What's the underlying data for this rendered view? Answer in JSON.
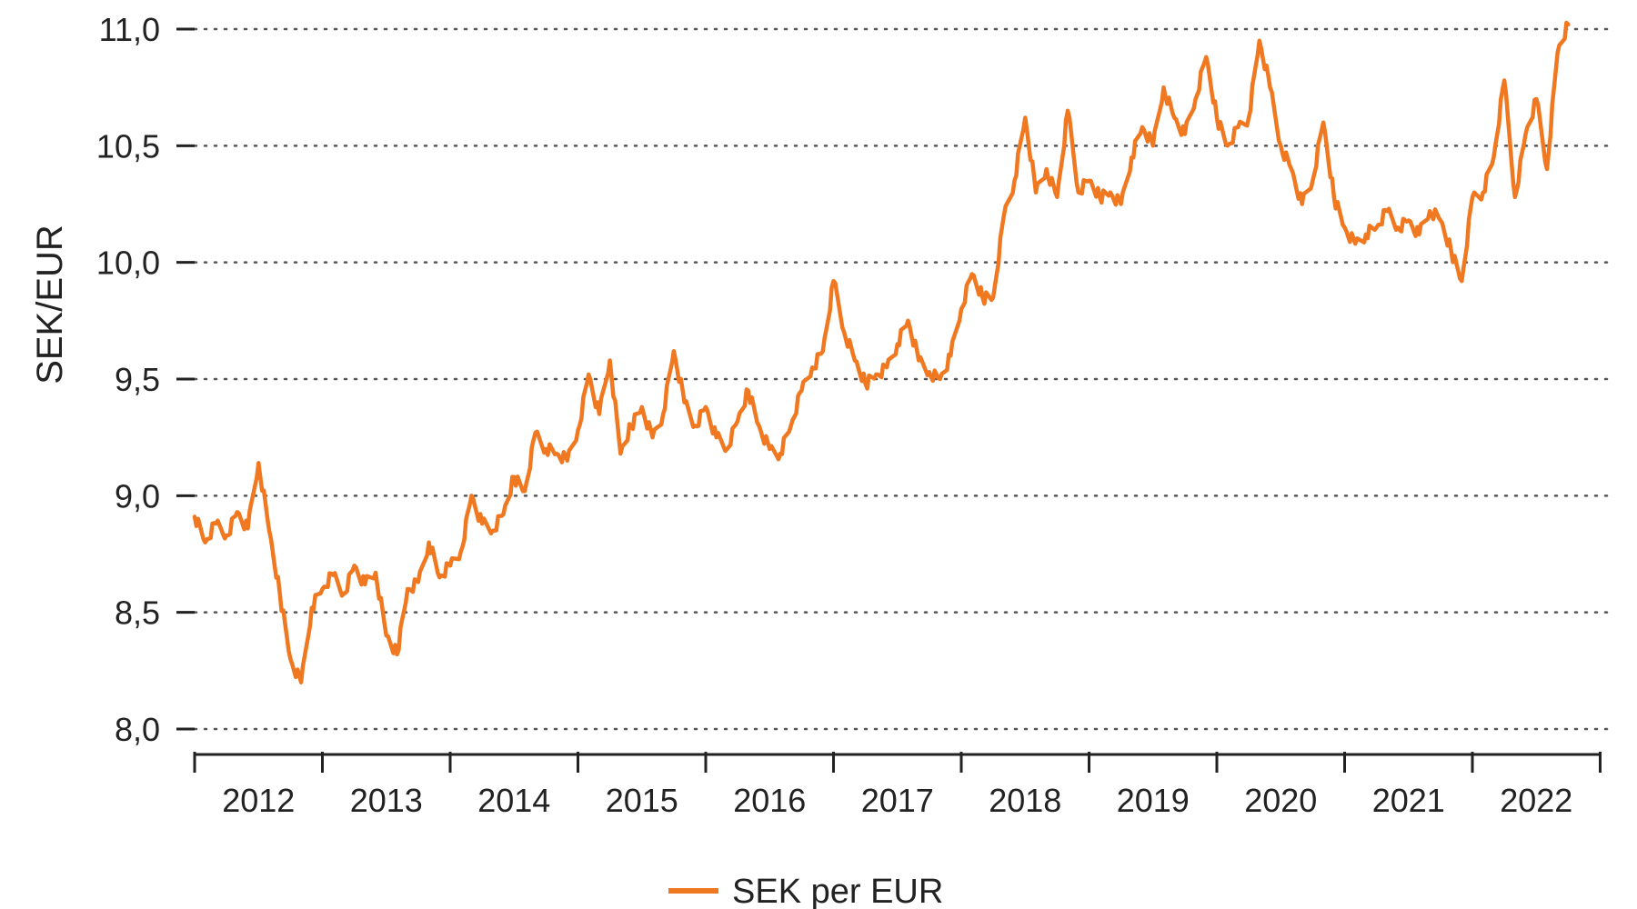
{
  "chart_data": {
    "type": "line",
    "ylabel": "SEK/EUR",
    "ylim": [
      8.0,
      11.0
    ],
    "xlim": [
      "2012-01",
      "2022-12"
    ],
    "grid": "horizontal dotted",
    "y_ticks": [
      {
        "value": 8.0,
        "label": "8,0"
      },
      {
        "value": 8.5,
        "label": "8,5"
      },
      {
        "value": 9.0,
        "label": "9,0"
      },
      {
        "value": 9.5,
        "label": "9,5"
      },
      {
        "value": 10.0,
        "label": "10,0"
      },
      {
        "value": 10.5,
        "label": "10,5"
      },
      {
        "value": 11.0,
        "label": "11,0"
      }
    ],
    "x_ticks": [
      "2012",
      "2013",
      "2014",
      "2015",
      "2016",
      "2017",
      "2018",
      "2019",
      "2020",
      "2021",
      "2022"
    ],
    "legend_position": "bottom-center",
    "series": [
      {
        "name": "SEK per EUR",
        "color": "#F07820",
        "points": [
          [
            "2012-01",
            8.91
          ],
          [
            "2012-02",
            8.8
          ],
          [
            "2012-03",
            8.88
          ],
          [
            "2012-04",
            8.83
          ],
          [
            "2012-05",
            8.93
          ],
          [
            "2012-06",
            8.86
          ],
          [
            "2012-07",
            9.14
          ],
          [
            "2012-08",
            8.85
          ],
          [
            "2012-09",
            8.58
          ],
          [
            "2012-10",
            8.3
          ],
          [
            "2012-11",
            8.2
          ],
          [
            "2012-12",
            8.52
          ],
          [
            "2013-01",
            8.6
          ],
          [
            "2013-02",
            8.66
          ],
          [
            "2013-03",
            8.58
          ],
          [
            "2013-04",
            8.7
          ],
          [
            "2013-05",
            8.62
          ],
          [
            "2013-06",
            8.67
          ],
          [
            "2013-07",
            8.4
          ],
          [
            "2013-08",
            8.32
          ],
          [
            "2013-09",
            8.6
          ],
          [
            "2013-10",
            8.63
          ],
          [
            "2013-11",
            8.8
          ],
          [
            "2013-12",
            8.65
          ],
          [
            "2014-01",
            8.7
          ],
          [
            "2014-02",
            8.76
          ],
          [
            "2014-03",
            9.0
          ],
          [
            "2014-04",
            8.88
          ],
          [
            "2014-05",
            8.85
          ],
          [
            "2014-06",
            8.92
          ],
          [
            "2014-07",
            9.08
          ],
          [
            "2014-08",
            9.02
          ],
          [
            "2014-09",
            9.27
          ],
          [
            "2014-10",
            9.2
          ],
          [
            "2014-11",
            9.18
          ],
          [
            "2014-12",
            9.15
          ],
          [
            "2015-01",
            9.28
          ],
          [
            "2015-02",
            9.52
          ],
          [
            "2015-03",
            9.35
          ],
          [
            "2015-04",
            9.58
          ],
          [
            "2015-05",
            9.18
          ],
          [
            "2015-06",
            9.3
          ],
          [
            "2015-07",
            9.38
          ],
          [
            "2015-08",
            9.25
          ],
          [
            "2015-09",
            9.35
          ],
          [
            "2015-10",
            9.62
          ],
          [
            "2015-11",
            9.4
          ],
          [
            "2015-12",
            9.3
          ],
          [
            "2016-01",
            9.38
          ],
          [
            "2016-02",
            9.25
          ],
          [
            "2016-03",
            9.2
          ],
          [
            "2016-04",
            9.32
          ],
          [
            "2016-05",
            9.45
          ],
          [
            "2016-06",
            9.3
          ],
          [
            "2016-07",
            9.2
          ],
          [
            "2016-08",
            9.18
          ],
          [
            "2016-09",
            9.3
          ],
          [
            "2016-10",
            9.45
          ],
          [
            "2016-11",
            9.55
          ],
          [
            "2016-12",
            9.62
          ],
          [
            "2017-01",
            9.92
          ],
          [
            "2017-02",
            9.7
          ],
          [
            "2017-03",
            9.58
          ],
          [
            "2017-04",
            9.48
          ],
          [
            "2017-05",
            9.52
          ],
          [
            "2017-06",
            9.55
          ],
          [
            "2017-07",
            9.65
          ],
          [
            "2017-08",
            9.75
          ],
          [
            "2017-09",
            9.58
          ],
          [
            "2017-10",
            9.53
          ],
          [
            "2017-11",
            9.5
          ],
          [
            "2017-12",
            9.6
          ],
          [
            "2018-01",
            9.8
          ],
          [
            "2018-02",
            9.95
          ],
          [
            "2018-03",
            9.85
          ],
          [
            "2018-04",
            9.85
          ],
          [
            "2018-05",
            10.2
          ],
          [
            "2018-06",
            10.35
          ],
          [
            "2018-07",
            10.62
          ],
          [
            "2018-08",
            10.3
          ],
          [
            "2018-09",
            10.4
          ],
          [
            "2018-10",
            10.28
          ],
          [
            "2018-11",
            10.65
          ],
          [
            "2018-12",
            10.3
          ],
          [
            "2019-01",
            10.35
          ],
          [
            "2019-02",
            10.28
          ],
          [
            "2019-03",
            10.3
          ],
          [
            "2019-04",
            10.25
          ],
          [
            "2019-05",
            10.45
          ],
          [
            "2019-06",
            10.58
          ],
          [
            "2019-07",
            10.5
          ],
          [
            "2019-08",
            10.75
          ],
          [
            "2019-09",
            10.62
          ],
          [
            "2019-10",
            10.55
          ],
          [
            "2019-11",
            10.7
          ],
          [
            "2019-12",
            10.88
          ],
          [
            "2020-01",
            10.62
          ],
          [
            "2020-02",
            10.5
          ],
          [
            "2020-03",
            10.58
          ],
          [
            "2020-04",
            10.62
          ],
          [
            "2020-05",
            10.95
          ],
          [
            "2020-06",
            10.75
          ],
          [
            "2020-07",
            10.5
          ],
          [
            "2020-08",
            10.4
          ],
          [
            "2020-09",
            10.25
          ],
          [
            "2020-10",
            10.35
          ],
          [
            "2020-11",
            10.6
          ],
          [
            "2020-12",
            10.28
          ],
          [
            "2021-01",
            10.15
          ],
          [
            "2021-02",
            10.08
          ],
          [
            "2021-03",
            10.12
          ],
          [
            "2021-04",
            10.15
          ],
          [
            "2021-05",
            10.22
          ],
          [
            "2021-06",
            10.15
          ],
          [
            "2021-07",
            10.18
          ],
          [
            "2021-08",
            10.12
          ],
          [
            "2021-09",
            10.22
          ],
          [
            "2021-10",
            10.18
          ],
          [
            "2021-11",
            10.05
          ],
          [
            "2021-12",
            9.92
          ],
          [
            "2022-01",
            10.28
          ],
          [
            "2022-02",
            10.3
          ],
          [
            "2022-03",
            10.45
          ],
          [
            "2022-04",
            10.78
          ],
          [
            "2022-05",
            10.28
          ],
          [
            "2022-06",
            10.55
          ],
          [
            "2022-07",
            10.7
          ],
          [
            "2022-08",
            10.4
          ],
          [
            "2022-09",
            10.9
          ],
          [
            "2022-10",
            11.02
          ]
        ]
      }
    ]
  }
}
